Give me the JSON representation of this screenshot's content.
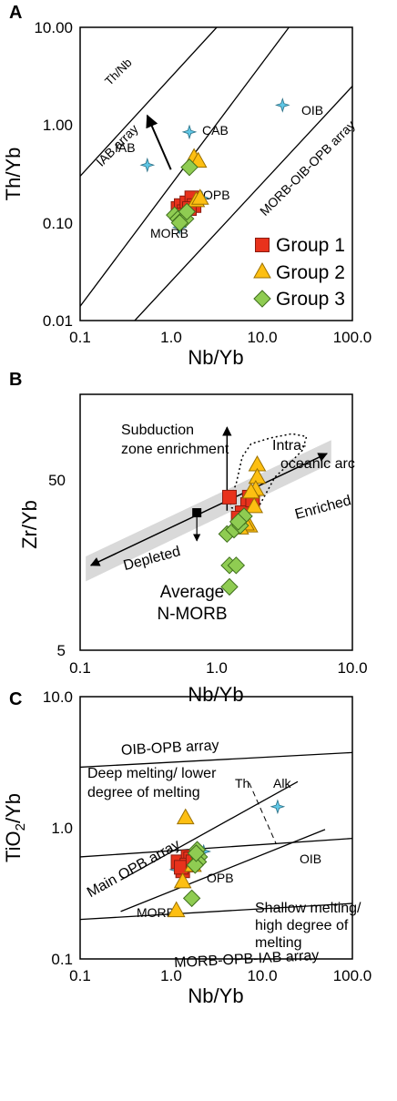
{
  "colors": {
    "group1": "#e8321c",
    "group2": "#fdbf12",
    "group3": "#8fcc52",
    "reference": "#5fc7e6",
    "shade": "#d9d9d9"
  },
  "marker_shapes": {
    "group1": "square",
    "group2": "triangle",
    "group3": "diamond",
    "reference": "star"
  },
  "chart_data": [
    {
      "panel": "A",
      "type": "scatter",
      "xlabel": "Nb/Yb",
      "ylabel": "Th/Yb",
      "x_scale": "log",
      "y_scale": "log",
      "xlim": [
        0.1,
        100
      ],
      "ylim": [
        0.01,
        10
      ],
      "x_ticks": [
        "0.1",
        "1.0",
        "10.0",
        "100.0"
      ],
      "y_ticks": [
        "0.01",
        "0.10",
        "1.00",
        "10.00"
      ],
      "legend": {
        "position": "bottom-right",
        "entries": [
          "Group 1",
          "Group 2",
          "Group 3"
        ]
      },
      "reference_lines": [
        {
          "label": "",
          "x": [
            0.1,
            3.2
          ],
          "y": [
            0.3,
            10
          ]
        },
        {
          "label": "",
          "x": [
            0.1,
            20
          ],
          "y": [
            0.014,
            10
          ]
        },
        {
          "label": "",
          "x": [
            0.4,
            100
          ],
          "y": [
            0.01,
            2.5
          ]
        }
      ],
      "region_labels": [
        "IAB array",
        "MORB-OIB-OPB array"
      ],
      "arrow": {
        "label": "Th/Nb",
        "from": [
          1.0,
          0.35
        ],
        "to": [
          0.55,
          1.25
        ]
      },
      "reference_points": [
        {
          "label": "OIB",
          "x": 17.0,
          "y": 1.6
        },
        {
          "label": "CAB",
          "x": 1.6,
          "y": 0.85
        },
        {
          "label": "IAB",
          "x": 0.55,
          "y": 0.39
        },
        {
          "label": "OPB",
          "x": 2.2,
          "y": 0.18
        },
        {
          "label": "MORB",
          "x": 1.25,
          "y": 0.09
        }
      ],
      "series": [
        {
          "name": "Group 1",
          "points": [
            [
              1.2,
              0.14
            ],
            [
              1.3,
              0.15
            ],
            [
              1.4,
              0.13
            ],
            [
              1.5,
              0.16
            ],
            [
              1.7,
              0.18
            ],
            [
              1.8,
              0.15
            ],
            [
              1.6,
              0.14
            ],
            [
              1.3,
              0.12
            ]
          ]
        },
        {
          "name": "Group 2",
          "points": [
            [
              1.8,
              0.47
            ],
            [
              2.0,
              0.43
            ],
            [
              1.9,
              0.17
            ],
            [
              2.1,
              0.18
            ]
          ]
        },
        {
          "name": "Group 3",
          "points": [
            [
              1.6,
              0.37
            ],
            [
              1.1,
              0.12
            ],
            [
              1.2,
              0.11
            ],
            [
              1.3,
              0.105
            ],
            [
              1.45,
              0.11
            ],
            [
              1.25,
              0.1
            ],
            [
              1.5,
              0.13
            ]
          ]
        }
      ]
    },
    {
      "panel": "B",
      "type": "scatter",
      "xlabel": "Nb/Yb",
      "ylabel": "Zr/Yb",
      "x_scale": "log",
      "y_scale": "log",
      "xlim": [
        0.1,
        10
      ],
      "ylim": [
        5,
        100
      ],
      "x_ticks": [
        "0.1",
        "1.0",
        "10.0"
      ],
      "y_ticks": [
        "5",
        "50"
      ],
      "annotations": [
        "Subduction",
        "zone enrichment",
        "Intra-",
        "oceanic arc",
        "Enriched",
        "Depleted",
        "Average",
        "N-MORB"
      ],
      "trend_arrow": {
        "from": [
          0.12,
          13.5
        ],
        "to": [
          6.5,
          50
        ]
      },
      "subduction_arrow": {
        "from": [
          1.2,
          25.6
        ],
        "to": [
          1.2,
          68
        ]
      },
      "nmorb_arrow": {
        "from": [
          0.72,
          25
        ],
        "to": [
          0.72,
          18
        ]
      },
      "average_nmorb": {
        "x": 0.72,
        "y": 25
      },
      "series": [
        {
          "name": "Group 1",
          "points": [
            [
              1.25,
              30
            ],
            [
              1.75,
              30
            ],
            [
              1.7,
              27.5
            ],
            [
              1.55,
              25
            ],
            [
              1.45,
              23.5
            ],
            [
              1.85,
              29
            ]
          ]
        },
        {
          "name": "Group 2",
          "points": [
            [
              2.0,
              44
            ],
            [
              2.0,
              38
            ],
            [
              1.95,
              33
            ],
            [
              1.8,
              32
            ],
            [
              1.9,
              27
            ],
            [
              1.75,
              21.5
            ],
            [
              1.65,
              22
            ],
            [
              1.5,
              21
            ]
          ]
        },
        {
          "name": "Group 3",
          "points": [
            [
              1.2,
              19.5
            ],
            [
              1.35,
              20.5
            ],
            [
              1.5,
              21.5
            ],
            [
              1.6,
              24
            ],
            [
              1.45,
              22.5
            ],
            [
              1.25,
              13.5
            ],
            [
              1.4,
              13.5
            ],
            [
              1.25,
              10.5
            ]
          ]
        }
      ]
    },
    {
      "panel": "C",
      "type": "scatter",
      "xlabel": "Nb/Yb",
      "ylabel": "TiO2/Yb",
      "x_scale": "log",
      "y_scale": "log",
      "xlim": [
        0.1,
        100
      ],
      "ylim": [
        0.1,
        10
      ],
      "x_ticks": [
        "0.1",
        "1.0",
        "10.0",
        "100.0"
      ],
      "y_ticks": [
        "0.1",
        "1.0",
        "10.0"
      ],
      "reference_lines": [
        {
          "label": "OIB-OPB array",
          "x": [
            0.1,
            100
          ],
          "y": [
            2.9,
            3.75
          ]
        },
        {
          "label": "Main OPB array",
          "x": [
            0.1,
            100
          ],
          "y": [
            0.6,
            0.83
          ]
        },
        {
          "label": "MORB-OPB-IAB array",
          "x": [
            0.1,
            100
          ],
          "y": [
            0.2,
            0.265
          ]
        },
        {
          "label": "",
          "x": [
            0.28,
            25
          ],
          "y": [
            0.4,
            2.25
          ]
        },
        {
          "label": "",
          "x": [
            0.28,
            50
          ],
          "y": [
            0.23,
            0.97
          ]
        }
      ],
      "divider": {
        "x": [
          7.3,
          14.5
        ],
        "y": [
          2.2,
          0.75
        ]
      },
      "region_labels": [
        "Deep melting/ lower",
        "degree of melting",
        "Shallow melting/",
        "high degree of",
        "melting",
        "Th",
        "Alk"
      ],
      "reference_points": [
        {
          "label": "OIB",
          "x": 15.0,
          "y": 1.45
        },
        {
          "label": "OPB",
          "x": 2.3,
          "y": 0.66
        },
        {
          "label": "MORB",
          "x": 1.15,
          "y": 0.48
        }
      ],
      "series": [
        {
          "name": "Group 1",
          "points": [
            [
              1.2,
              0.55
            ],
            [
              1.35,
              0.47
            ],
            [
              1.55,
              0.6
            ],
            [
              1.65,
              0.58
            ],
            [
              1.5,
              0.52
            ],
            [
              1.3,
              0.5
            ],
            [
              1.75,
              0.55
            ]
          ]
        },
        {
          "name": "Group 2",
          "points": [
            [
              1.45,
              1.2
            ],
            [
              1.35,
              0.39
            ],
            [
              1.15,
              0.235
            ],
            [
              1.75,
              0.52
            ]
          ]
        },
        {
          "name": "Group 3",
          "points": [
            [
              1.95,
              0.68
            ],
            [
              2.05,
              0.6
            ],
            [
              2.0,
              0.55
            ],
            [
              1.85,
              0.52
            ],
            [
              1.7,
              0.29
            ],
            [
              1.9,
              0.64
            ]
          ]
        }
      ]
    }
  ],
  "text": {
    "panelA": "A",
    "panelB": "B",
    "panelC": "C",
    "A_xlabel": "Nb/Yb",
    "A_ylabel": "Th/Yb",
    "B_xlabel": "Nb/Yb",
    "B_ylabel": "Zr/Yb",
    "C_xlabel": "Nb/Yb",
    "C_ylabel_main": "TiO",
    "C_ylabel_sub": "2",
    "C_ylabel_tail": "/Yb",
    "A_thnb": "Th/Nb",
    "A_iab_array": "IAB array",
    "A_morb_array": "MORB-OIB-OPB array",
    "A_oib": "OIB",
    "A_cab": "CAB",
    "A_iab": "IAB",
    "A_opb": "OPB",
    "A_morb": "MORB",
    "leg1": "Group 1",
    "leg2": "Group 2",
    "leg3": "Group 3",
    "B_subduction1": "Subduction",
    "B_subduction2": "zone enrichment",
    "B_intra1": "Intra-",
    "B_intra2": "oceanic arc",
    "B_enriched": "Enriched",
    "B_depleted": "Depleted",
    "B_average": "Average",
    "B_nmorb": "N-MORB",
    "C_oib_opb": "OIB-OPB array",
    "C_deep1": "Deep melting/ lower",
    "C_deep2": "degree of melting",
    "C_th": "Th",
    "C_alk": "Alk",
    "C_oib": "OIB",
    "C_main_opb": "Main OPB array",
    "C_opb": "OPB",
    "C_morb": "MORB",
    "C_shallow1": "Shallow melting/",
    "C_shallow2": "high degree of",
    "C_shallow3": "melting",
    "C_morb_iab": "MORB-OPB-IAB array",
    "A_xt0": "0.1",
    "A_xt1": "1.0",
    "A_xt2": "10.0",
    "A_xt3": "100.0",
    "A_yt0": "0.01",
    "A_yt1": "0.10",
    "A_yt2": "1.00",
    "A_yt3": "10.00",
    "B_xt0": "0.1",
    "B_xt1": "1.0",
    "B_xt2": "10.0",
    "B_yt0": "5",
    "B_yt1": "50",
    "C_xt0": "0.1",
    "C_xt1": "1.0",
    "C_xt2": "10.0",
    "C_xt3": "100.0",
    "C_yt0": "0.1",
    "C_yt1": "1.0",
    "C_yt2": "10.0"
  }
}
